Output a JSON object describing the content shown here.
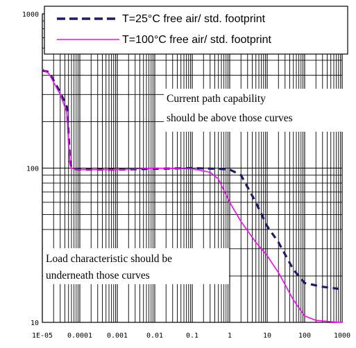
{
  "chart_data": {
    "type": "line",
    "x_scale": "log",
    "y_scale": "log",
    "xlim": [
      1e-05,
      1000
    ],
    "ylim": [
      10,
      1000
    ],
    "x_ticks": [
      1e-05,
      0.0001,
      0.001,
      0.01,
      0.1,
      1,
      10,
      100,
      1000
    ],
    "x_tick_labels": [
      "1E-05",
      "0.0001",
      "0.001",
      "0.01",
      "0.1",
      "1",
      "10",
      "100",
      "1000"
    ],
    "y_ticks": [
      10,
      100,
      1000
    ],
    "y_tick_labels": [
      "10",
      "100",
      "1000"
    ],
    "grid": true,
    "legend_position": "top",
    "series": [
      {
        "name": "T=25°C free air/ std. footprint",
        "color": "#1a1a6e",
        "dash": "dashed",
        "x": [
          1e-05,
          1.5e-05,
          3e-05,
          4.5e-05,
          5e-05,
          5.5e-05,
          6e-05,
          7e-05,
          0.0001,
          0.001,
          0.01,
          0.1,
          0.5,
          1,
          2,
          5,
          10,
          20,
          50,
          100,
          300,
          800
        ],
        "values": [
          430,
          420,
          310,
          250,
          170,
          110,
          100,
          99,
          98,
          98,
          99,
          100,
          99,
          98,
          90,
          60,
          42,
          33,
          22,
          18,
          17,
          16.5
        ]
      },
      {
        "name": "T=100°C free air/ std. footprint",
        "color": "#ff00ff",
        "dash": "solid",
        "x": [
          1e-05,
          1.5e-05,
          3e-05,
          4.5e-05,
          5e-05,
          5.5e-05,
          6e-05,
          7e-05,
          0.0001,
          0.001,
          0.01,
          0.1,
          0.3,
          0.5,
          1,
          2,
          5,
          10,
          20,
          50,
          100,
          200,
          500,
          1000
        ],
        "values": [
          440,
          410,
          300,
          230,
          150,
          105,
          100,
          99,
          98,
          98,
          100,
          99,
          94,
          85,
          60,
          45,
          33,
          27,
          21,
          14,
          11,
          10.3,
          10.1,
          10
        ]
      }
    ],
    "annotations": [
      "Current path capability should be above those curves",
      "Load characteristic should be underneath those curves"
    ]
  },
  "annotation_top": {
    "line1": "Current path capability",
    "line2": "should be above those curves"
  },
  "annotation_bottom": {
    "line1": "Load characteristic should be",
    "line2": "underneath those curves"
  }
}
